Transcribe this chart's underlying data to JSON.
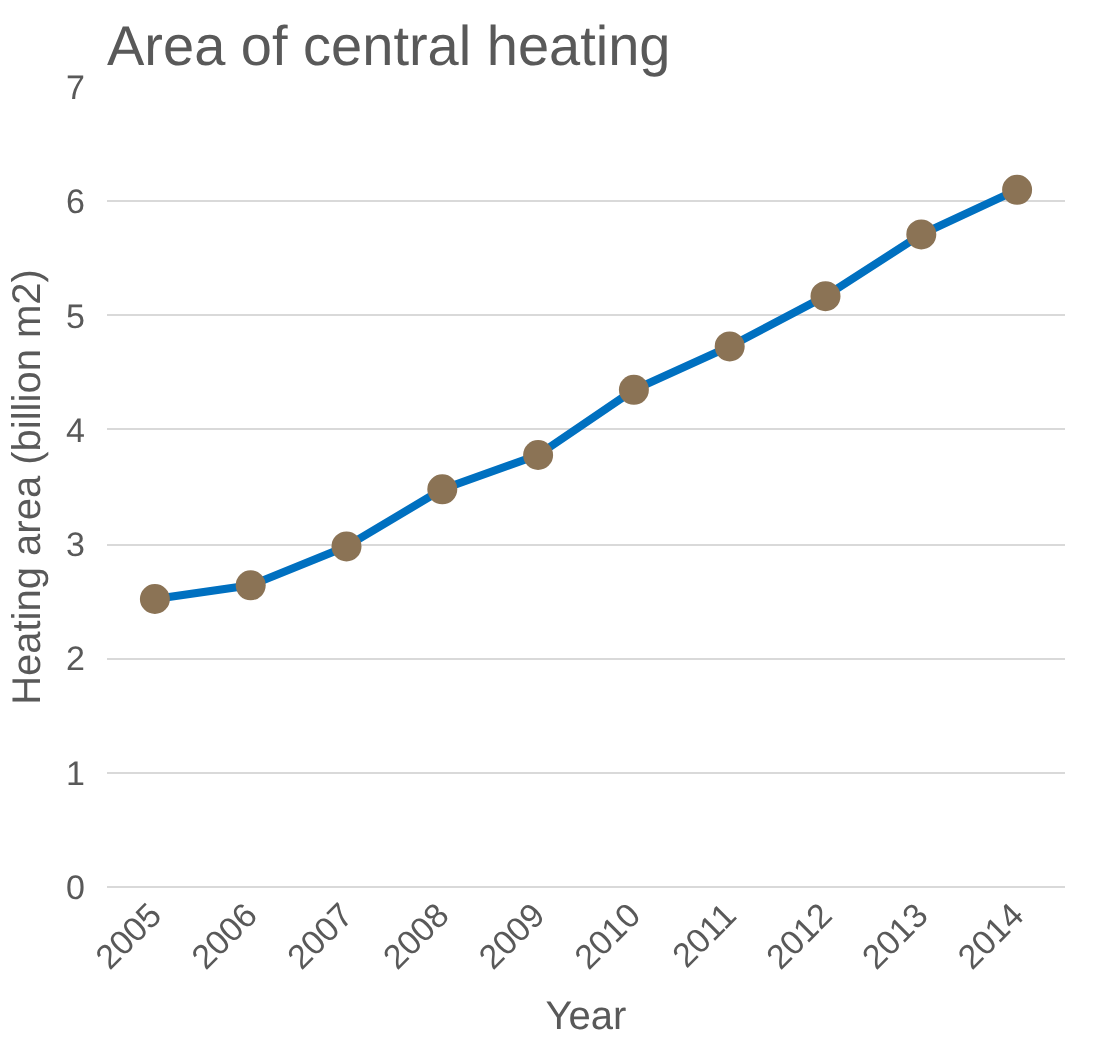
{
  "chart_data": {
    "type": "line",
    "title": "Area of central heating",
    "xlabel": "Year",
    "ylabel": "Heating area (billion m2)",
    "categories": [
      "2005",
      "2006",
      "2007",
      "2008",
      "2009",
      "2010",
      "2011",
      "2012",
      "2013",
      "2014"
    ],
    "series": [
      {
        "color": "#0070c0",
        "values": [
          2.52,
          2.64,
          2.98,
          3.48,
          3.78,
          4.35,
          4.73,
          5.17,
          5.71,
          6.1
        ],
        "colors": [
          "#8b7355",
          "#8b7355",
          "#8b7355",
          "#8b7355",
          "#8b7355",
          "#8b7355",
          "#8b7355",
          "#8b7355",
          "#8b7355",
          "#8b7355"
        ]
      }
    ],
    "marker": "circle",
    "ylim": [
      0,
      7
    ],
    "yticks": [
      0,
      1,
      2,
      3,
      4,
      5,
      6,
      7
    ],
    "grid": "y"
  }
}
